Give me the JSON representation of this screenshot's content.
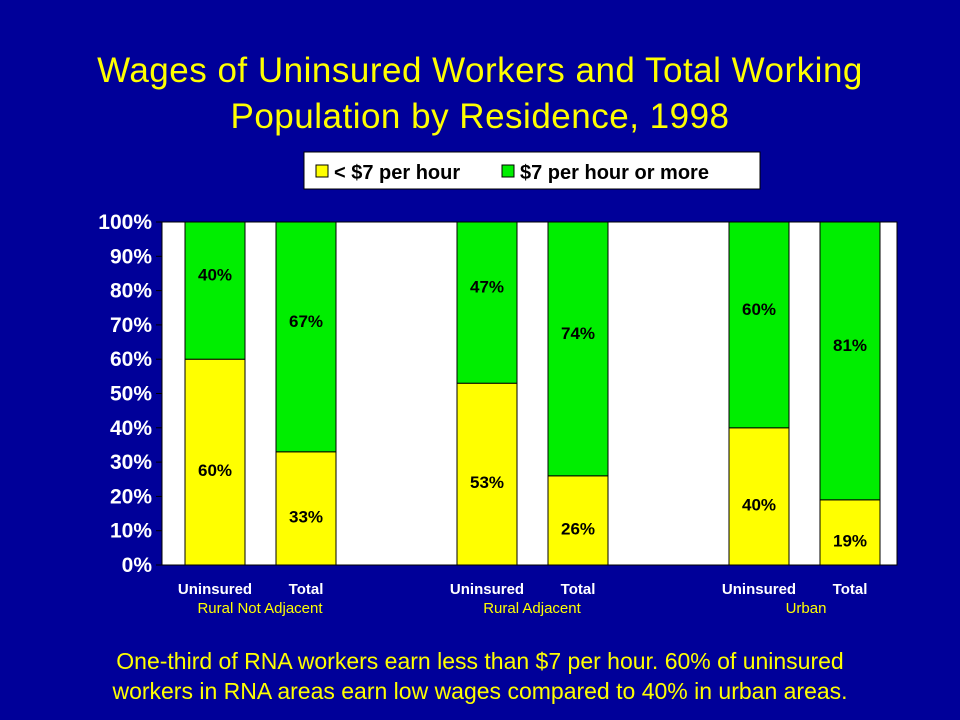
{
  "slide": {
    "title_line1": "Wages of Uninsured Workers and Total Working",
    "title_line2": "Population by Residence, 1998",
    "caption_line1": "One-third of RNA workers earn less than $7 per hour.  60% of uninsured",
    "caption_line2": "workers in RNA areas earn low wages compared to 40% in urban areas."
  },
  "colors": {
    "background": "#000099",
    "low_wage": "#ffff00",
    "high_wage": "#00ee00",
    "plot_area": "#ffffff",
    "title_text": "#ffff00",
    "group_label_text": "#ffff00"
  },
  "chart_data": {
    "type": "bar",
    "stacked": true,
    "percent": true,
    "ylim": [
      0,
      100
    ],
    "yticks": [
      "0%",
      "10%",
      "20%",
      "30%",
      "40%",
      "50%",
      "60%",
      "70%",
      "80%",
      "90%",
      "100%"
    ],
    "groups": [
      "Rural Not Adjacent",
      "Rural Adjacent",
      "Urban"
    ],
    "categories": [
      "Uninsured",
      "Total",
      "Uninsured",
      "Total",
      "Uninsured",
      "Total"
    ],
    "series": [
      {
        "name": "< $7 per hour",
        "values": [
          60,
          33,
          53,
          26,
          40,
          19
        ],
        "labels": [
          "60%",
          "33%",
          "53%",
          "26%",
          "40%",
          "19%"
        ]
      },
      {
        "name": "$7 per hour or more",
        "values": [
          40,
          67,
          47,
          74,
          60,
          81
        ],
        "labels": [
          "40%",
          "67%",
          "47%",
          "74%",
          "60%",
          "81%"
        ]
      }
    ],
    "legend_position": "top-right",
    "grid": false
  }
}
